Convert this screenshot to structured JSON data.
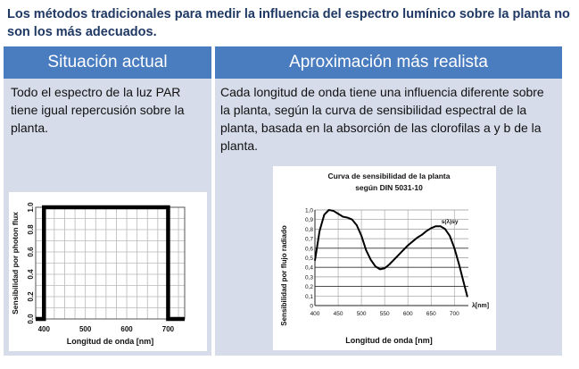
{
  "headline": "Los métodos tradicionales para medir la influencia del espectro lumínico sobre la planta no son los más adecuados.",
  "left_panel": {
    "header": "Situación actual",
    "text": "Todo el espectro de la luz PAR tiene igual repercusión  sobre la planta."
  },
  "right_panel": {
    "header": "Aproximación más realista",
    "text": "Cada longitud de onda tiene una influencia diferente sobre la planta, según la curva de sensibilidad espectral de la planta, basada en la absorción de las clorofilas a y b de la planta."
  },
  "colors": {
    "header_bg": "#4a7cc0",
    "panel_bg": "#d6dcea",
    "headline": "#1f3864"
  },
  "chart_data": [
    {
      "type": "line",
      "title": "",
      "xlabel": "Longitud de onda  [nm]",
      "ylabel": "Sensibilidad por photon flux",
      "xlim": [
        380,
        740
      ],
      "ylim": [
        0,
        1.0
      ],
      "xticks": [
        "400",
        "500",
        "600",
        "700"
      ],
      "xtick_values": [
        400,
        500,
        600,
        700
      ],
      "yticks": [
        "0.0",
        "0.2",
        "0.4",
        "0.6",
        "0.8",
        "1.0"
      ],
      "ytick_values": [
        0,
        0.2,
        0.4,
        0.6,
        0.8,
        1.0
      ],
      "grid": true,
      "series": [
        {
          "x": [
            380,
            400,
            400,
            700,
            700,
            740
          ],
          "y": [
            0,
            0,
            1.0,
            1.0,
            0,
            0
          ]
        }
      ]
    },
    {
      "type": "line",
      "title": "Curva de sensibilidad de la planta según DIN 5031-10",
      "xlabel": "Longitud de onda  [nm]",
      "ylabel": "Sensibilidad por flujo radiado",
      "x_unit_label": "λ[nm]",
      "xlim": [
        400,
        730
      ],
      "ylim": [
        0,
        1.0
      ],
      "xticks": [
        "400",
        "450",
        "500",
        "550",
        "600",
        "650",
        "700"
      ],
      "xtick_values": [
        400,
        450,
        500,
        550,
        600,
        650,
        700
      ],
      "yticks": [
        "0",
        "0,1",
        "0,2",
        "0,3",
        "0,4",
        "0,5",
        "0,6",
        "0,7",
        "0,8",
        "0,9",
        "1,0"
      ],
      "ytick_values": [
        0,
        0.1,
        0.2,
        0.3,
        0.4,
        0.5,
        0.6,
        0.7,
        0.8,
        0.9,
        1.0
      ],
      "grid": true,
      "annotation": "s(λ)sy",
      "series": [
        {
          "x": [
            400,
            410,
            420,
            430,
            440,
            450,
            460,
            470,
            480,
            490,
            500,
            510,
            520,
            530,
            540,
            550,
            560,
            570,
            580,
            590,
            600,
            610,
            620,
            630,
            640,
            650,
            660,
            670,
            680,
            690,
            700,
            710,
            720,
            728
          ],
          "y": [
            0.47,
            0.78,
            0.95,
            1.0,
            0.99,
            0.96,
            0.93,
            0.92,
            0.9,
            0.84,
            0.73,
            0.58,
            0.48,
            0.41,
            0.38,
            0.39,
            0.43,
            0.48,
            0.53,
            0.58,
            0.63,
            0.67,
            0.71,
            0.74,
            0.78,
            0.81,
            0.83,
            0.83,
            0.8,
            0.73,
            0.6,
            0.43,
            0.24,
            0.09
          ]
        }
      ]
    }
  ]
}
